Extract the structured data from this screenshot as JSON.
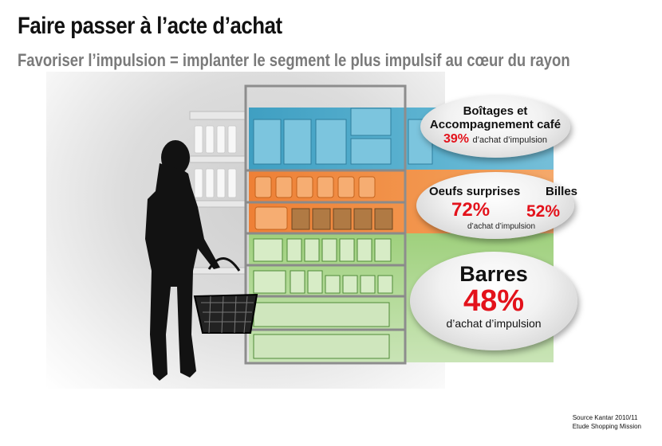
{
  "header": {
    "title": "Faire passer à l’acte d’achat",
    "subtitle": "Favoriser l’impulsion = implanter le segment le plus impulsif au cœur du rayon"
  },
  "colors": {
    "accent_red": "#e3121b",
    "band_blue": "#4aa7c8",
    "band_orange": "#f08a3a",
    "band_green": "#9ccf7a"
  },
  "callouts": {
    "boitages": {
      "title_line1": "Boîtages et",
      "title_line2": "Accompagnement café",
      "percent": "39%",
      "caption": "d’achat d’impulsion"
    },
    "oeufs": {
      "title": "Oeufs surprises",
      "percent": "72%",
      "caption": "d’achat d’impulsion"
    },
    "billes": {
      "title": "Billes",
      "percent": "52%"
    },
    "barres": {
      "title": "Barres",
      "percent": "48%",
      "caption": "d’achat d’impulsion"
    }
  },
  "source": {
    "line1": "Source Kantar 2010/11",
    "line2": "Etude Shopping Mission"
  }
}
